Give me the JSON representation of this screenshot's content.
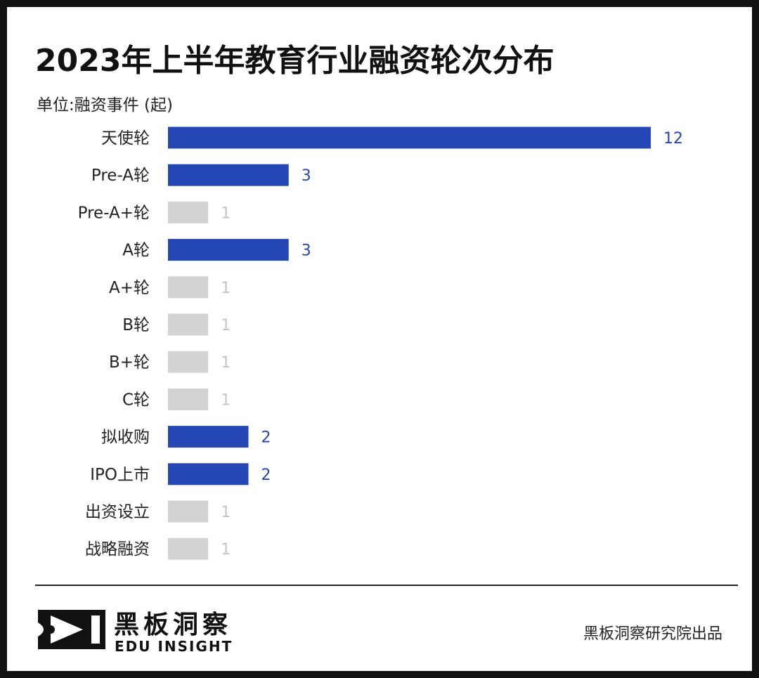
{
  "title": "2023年上半年教育行业融资轮次分布",
  "unit_label": "单位:融资事件 (起)",
  "brand": {
    "name_cn": "黑板洞察",
    "name_en": "EDU INSIGHT",
    "credit": "黑板洞察研究院出品"
  },
  "colors": {
    "highlight": "#2547b5",
    "muted": "#d3d3d3",
    "highlight_label": "#2547b5",
    "muted_label": "#c4c4c4"
  },
  "chart_data": {
    "type": "bar",
    "orientation": "horizontal",
    "categories": [
      "天使轮",
      "Pre-A轮",
      "Pre-A+轮",
      "A轮",
      "A+轮",
      "B轮",
      "B+轮",
      "C轮",
      "拟收购",
      "IPO上市",
      "出资设立",
      "战略融资"
    ],
    "values": [
      12,
      3,
      1,
      3,
      1,
      1,
      1,
      1,
      2,
      2,
      1,
      1
    ],
    "highlighted": [
      true,
      true,
      false,
      true,
      false,
      false,
      false,
      false,
      true,
      true,
      false,
      false
    ],
    "title": "2023年上半年教育行业融资轮次分布",
    "xlabel": "",
    "ylabel": "",
    "xlim": [
      0,
      12
    ],
    "grid": false,
    "legend": "none"
  }
}
